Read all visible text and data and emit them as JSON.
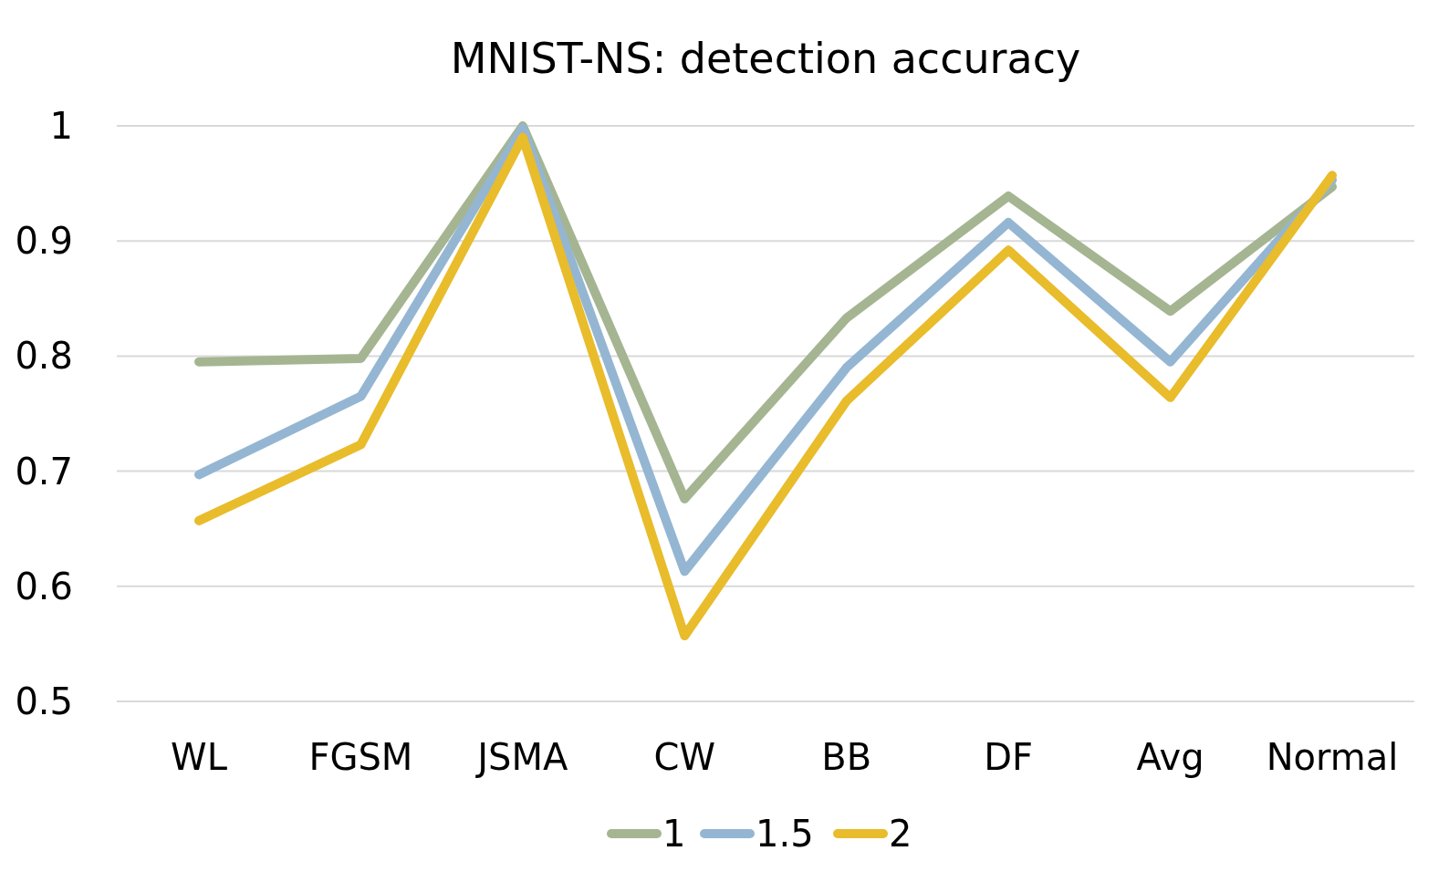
{
  "chart_data": {
    "type": "line",
    "title": "MNIST-NS: detection accuracy",
    "categories": [
      "WL",
      "FGSM",
      "JSMA",
      "CW",
      "BB",
      "DF",
      "Avg",
      "Normal"
    ],
    "series": [
      {
        "name": "1",
        "color": "#a5b592",
        "values": [
          0.795,
          0.798,
          1.0,
          0.676,
          0.833,
          0.939,
          0.839,
          0.947
        ]
      },
      {
        "name": "1.5",
        "color": "#94b6d2",
        "values": [
          0.697,
          0.765,
          0.998,
          0.613,
          0.79,
          0.916,
          0.795,
          0.953
        ]
      },
      {
        "name": "2",
        "color": "#e8bc2b",
        "values": [
          0.657,
          0.723,
          0.99,
          0.557,
          0.761,
          0.892,
          0.764,
          0.957
        ]
      }
    ],
    "ylim": [
      0.5,
      1
    ],
    "yticks": [
      0.5,
      0.6,
      0.7,
      0.8,
      0.9,
      {
        "value": 1,
        "label": "1"
      }
    ],
    "grid": "y",
    "legend": "bottom",
    "marker": "none",
    "line_style": "solid"
  }
}
